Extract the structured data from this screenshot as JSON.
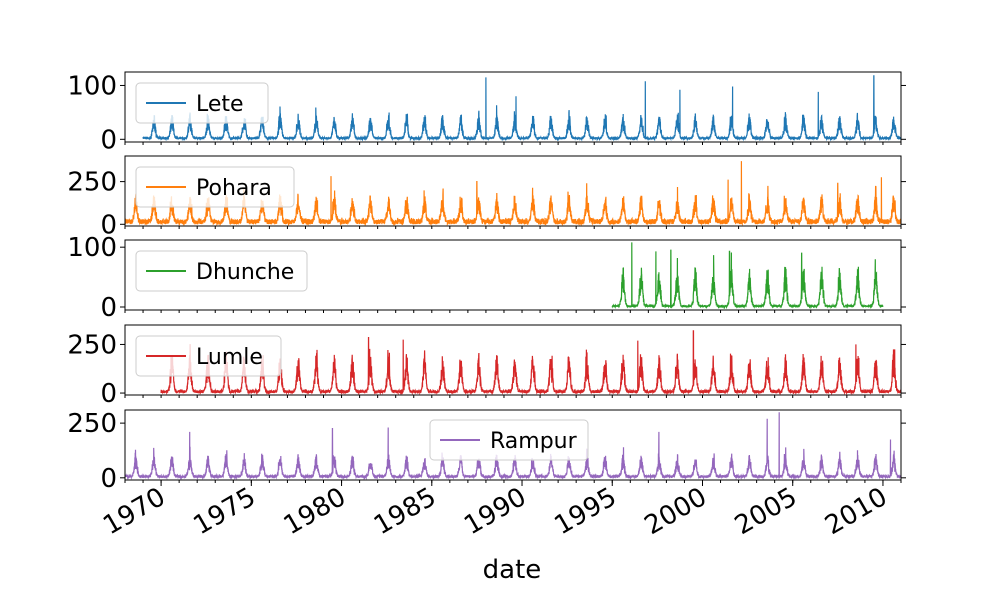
{
  "chart_data": {
    "type": "area",
    "xlabel": "date",
    "x_tick_labels": [
      "1970",
      "1975",
      "1980",
      "1985",
      "1990",
      "1995",
      "2000",
      "2005",
      "2010"
    ],
    "xlim": [
      "1968-01-01",
      "2011-01-01"
    ],
    "series": [
      {
        "name": "Lete",
        "color": "#1f77b4",
        "start": "1969-01-01",
        "end": "2010-12-31",
        "yticks": [
          "0",
          "100"
        ],
        "ylim": [
          -5,
          125
        ],
        "legend": "top-left",
        "typical_peak": 42,
        "base": 4,
        "spikes": [
          [
            "1988-01-01",
            115
          ],
          [
            "1989-09-01",
            80
          ],
          [
            "1996-11-01",
            108
          ],
          [
            "1998-10-01",
            92
          ],
          [
            "2001-09-01",
            98
          ],
          [
            "2006-06-01",
            88
          ],
          [
            "2009-07-01",
            118
          ]
        ]
      },
      {
        "name": "Pohara",
        "color": "#ff7f0e",
        "start": "1968-01-01",
        "end": "2010-12-31",
        "yticks": [
          "0",
          "250"
        ],
        "ylim": [
          -10,
          400
        ],
        "legend": "top-left",
        "typical_peak": 150,
        "base": 30,
        "spikes": [
          [
            "1979-06-01",
            282
          ],
          [
            "1987-07-01",
            250
          ],
          [
            "1993-08-01",
            240
          ],
          [
            "2001-06-01",
            262
          ],
          [
            "2002-03-01",
            370
          ],
          [
            "2007-07-01",
            240
          ],
          [
            "2009-12-01",
            275
          ]
        ]
      },
      {
        "name": "Dhunche",
        "color": "#2ca02c",
        "start": "1995-01-01",
        "end": "2009-12-31",
        "yticks": [
          "0",
          "100"
        ],
        "ylim": [
          -5,
          112
        ],
        "legend": "top-left",
        "typical_peak": 62,
        "base": 3,
        "spikes": [
          [
            "1996-02-01",
            108
          ],
          [
            "1997-06-01",
            93
          ],
          [
            "1998-04-01",
            95
          ],
          [
            "2001-07-01",
            93
          ],
          [
            "2005-07-01",
            90
          ]
        ]
      },
      {
        "name": "Lumle",
        "color": "#d62728",
        "start": "1970-01-01",
        "end": "2010-12-31",
        "yticks": [
          "0",
          "250"
        ],
        "ylim": [
          -10,
          350
        ],
        "legend": "top-left",
        "typical_peak": 180,
        "base": 15,
        "spikes": [
          [
            "1981-07-01",
            285
          ],
          [
            "1983-06-01",
            275
          ],
          [
            "1996-06-01",
            270
          ],
          [
            "1999-07-01",
            320
          ],
          [
            "2008-07-01",
            250
          ]
        ]
      },
      {
        "name": "Rampur",
        "color": "#9467bd",
        "start": "1968-01-01",
        "end": "2010-12-31",
        "yticks": [
          "0",
          "250"
        ],
        "ylim": [
          -10,
          310
        ],
        "legend": "top-center",
        "typical_peak": 95,
        "base": 12,
        "spikes": [
          [
            "1971-08-01",
            210
          ],
          [
            "1979-07-01",
            225
          ],
          [
            "1982-08-01",
            230
          ],
          [
            "1997-08-01",
            210
          ],
          [
            "2003-08-01",
            270
          ],
          [
            "2004-04-01",
            300
          ],
          [
            "2010-06-01",
            175
          ]
        ]
      }
    ]
  }
}
